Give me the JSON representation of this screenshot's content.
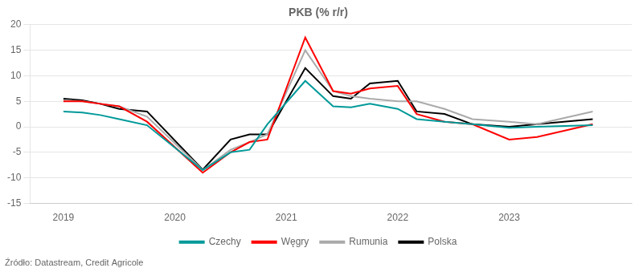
{
  "chart_data": {
    "type": "line",
    "title": "PKB (% r/r)",
    "source": "Źródło: Datastream, Credit Agricole",
    "x": [
      2019.0,
      2019.17,
      2019.33,
      2019.5,
      2019.75,
      2020.25,
      2020.5,
      2020.67,
      2020.83,
      2021.17,
      2021.42,
      2021.58,
      2021.75,
      2022.0,
      2022.17,
      2022.42,
      2022.67,
      2023.0,
      2023.25,
      2023.75
    ],
    "series": [
      {
        "name": "Czechy",
        "color": "#009999",
        "values": [
          3.0,
          2.8,
          2.3,
          1.5,
          0.3,
          -8.5,
          -5.0,
          -4.5,
          0.5,
          9.0,
          4.0,
          3.8,
          4.5,
          3.5,
          1.5,
          1.0,
          0.5,
          -0.2,
          0.0,
          0.3
        ]
      },
      {
        "name": "Węgry",
        "color": "#FF0000",
        "values": [
          5.0,
          5.0,
          4.5,
          4.0,
          1.0,
          -9.0,
          -5.0,
          -3.0,
          -2.5,
          17.5,
          7.0,
          6.5,
          7.5,
          8.0,
          2.5,
          1.0,
          0.5,
          -2.5,
          -2.0,
          0.5
        ]
      },
      {
        "name": "Rumunia",
        "color": "#AAAAAA",
        "values": [
          5.2,
          5.0,
          4.5,
          4.0,
          2.0,
          -8.5,
          -4.5,
          -3.0,
          -1.5,
          15.0,
          7.0,
          6.0,
          5.5,
          5.0,
          5.0,
          3.5,
          1.5,
          1.0,
          0.5,
          3.0
        ]
      },
      {
        "name": "Polska",
        "color": "#000000",
        "values": [
          5.5,
          5.2,
          4.5,
          3.5,
          3.0,
          -8.4,
          -2.5,
          -1.5,
          -1.5,
          11.5,
          6.0,
          5.5,
          8.5,
          9.0,
          3.0,
          2.5,
          0.5,
          0.0,
          0.5,
          1.5
        ]
      }
    ],
    "xlim": [
      2018.7,
      2024.1
    ],
    "xticks": [
      2019,
      2020,
      2021,
      2022,
      2023
    ],
    "ylim": [
      -15,
      20
    ],
    "yticks": [
      -15,
      -10,
      -5,
      0,
      5,
      10,
      15,
      20
    ],
    "grid": "y",
    "legend": "bottom"
  }
}
